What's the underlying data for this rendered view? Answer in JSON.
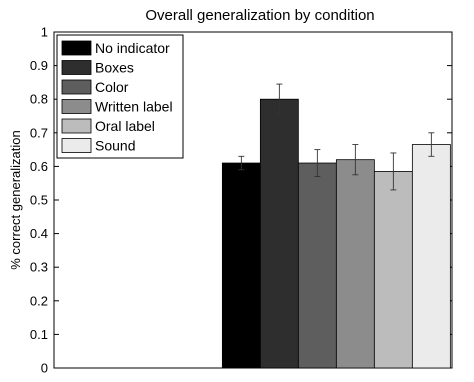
{
  "chart_data": {
    "type": "bar",
    "title": "Overall generalization by condition",
    "xlabel": "",
    "ylabel": "% correct generalization",
    "ylim": [
      0,
      1
    ],
    "yticks": [
      "0",
      "0.1",
      "0.2",
      "0.3",
      "0.4",
      "0.5",
      "0.6",
      "0.7",
      "0.8",
      "0.9",
      "1"
    ],
    "grid": false,
    "legend_position": "top-left",
    "xlim": [
      0,
      1
    ],
    "bar_group_start": 0.423,
    "series": [
      {
        "name": "No indicator",
        "value": 0.61,
        "error": 0.02,
        "color": "#000000"
      },
      {
        "name": "Boxes",
        "value": 0.8,
        "error": 0.045,
        "color": "#2e2e2e"
      },
      {
        "name": "Color",
        "value": 0.61,
        "error": 0.04,
        "color": "#5e5e5e"
      },
      {
        "name": "Written label",
        "value": 0.62,
        "error": 0.045,
        "color": "#8c8c8c"
      },
      {
        "name": "Oral label",
        "value": 0.585,
        "error": 0.055,
        "color": "#bcbcbc"
      },
      {
        "name": "Sound",
        "value": 0.665,
        "error": 0.035,
        "color": "#ebebeb"
      }
    ]
  }
}
